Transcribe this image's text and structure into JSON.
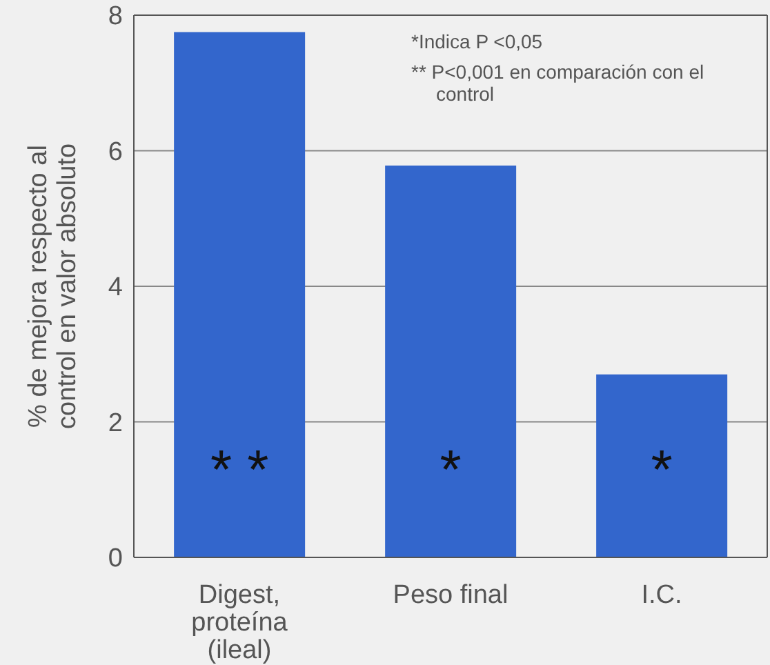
{
  "chart_data": {
    "type": "bar",
    "ylabel": "% de mejora respecto al control en valor absoluto",
    "categories": [
      "Digest, proteína (ileal)",
      "Peso final",
      "I.C."
    ],
    "values": [
      7.75,
      5.78,
      2.7
    ],
    "color": "#3366cc",
    "ylim": [
      0,
      8
    ],
    "yticks": [
      0,
      2,
      4,
      6,
      8
    ],
    "grid": "y",
    "value_labels": [
      "* *",
      "*",
      "*"
    ],
    "annotations": [
      "*Indica P <0,05",
      "** P<0,001 en comparación con el control"
    ]
  }
}
